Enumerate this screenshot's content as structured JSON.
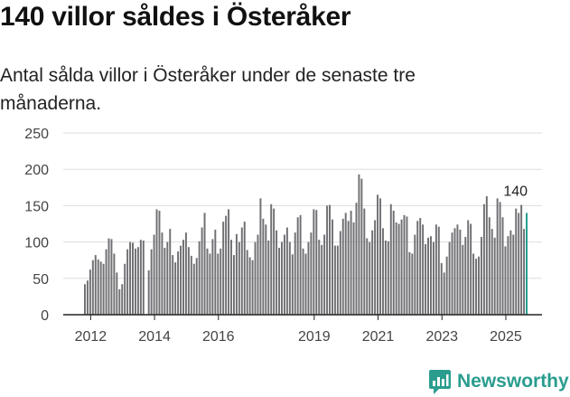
{
  "title": "140 villor såldes i Österåker",
  "subtitle": "Antal sålda villor i Österåker under de senaste tre månaderna.",
  "brand": {
    "name": "Newsworthy",
    "logo_icon": "bar-chart-speech-bubble-icon",
    "color": "#2a9d8f"
  },
  "colors": {
    "bar": "#706f73",
    "highlight": "#1f9e8f",
    "grid": "#dddddd",
    "axis": "#222222"
  },
  "chart_data": {
    "type": "bar",
    "title": "140 villor såldes i Österåker",
    "xlabel": "",
    "ylabel": "",
    "ylim": [
      0,
      250
    ],
    "yticks": [
      0,
      50,
      100,
      150,
      200,
      250
    ],
    "grid": true,
    "xticks": [
      {
        "label": "2012",
        "index": 2
      },
      {
        "label": "2014",
        "index": 26
      },
      {
        "label": "2016",
        "index": 50
      },
      {
        "label": "2019",
        "index": 86
      },
      {
        "label": "2021",
        "index": 110
      },
      {
        "label": "2023",
        "index": 134
      },
      {
        "label": "2025",
        "index": 158
      }
    ],
    "annotation": {
      "label": "140",
      "index": 162
    },
    "values": [
      42,
      47,
      62,
      75,
      82,
      76,
      73,
      70,
      90,
      105,
      104,
      84,
      58,
      35,
      42,
      70,
      90,
      100,
      99,
      91,
      93,
      103,
      102,
      0,
      61,
      90,
      110,
      145,
      143,
      113,
      92,
      100,
      118,
      82,
      72,
      87,
      95,
      103,
      113,
      93,
      81,
      70,
      78,
      101,
      120,
      140,
      91,
      84,
      104,
      117,
      84,
      91,
      128,
      136,
      145,
      103,
      82,
      111,
      100,
      120,
      128,
      89,
      79,
      75,
      100,
      110,
      160,
      132,
      124,
      102,
      152,
      146,
      116,
      92,
      100,
      110,
      120,
      100,
      83,
      113,
      134,
      137,
      91,
      84,
      100,
      113,
      145,
      144,
      103,
      96,
      110,
      150,
      151,
      131,
      95,
      95,
      115,
      132,
      140,
      129,
      143,
      127,
      154,
      193,
      187,
      146,
      105,
      100,
      116,
      130,
      165,
      160,
      119,
      102,
      101,
      152,
      143,
      127,
      125,
      131,
      137,
      135,
      86,
      84,
      110,
      129,
      133,
      124,
      97,
      106,
      108,
      100,
      124,
      121,
      71,
      58,
      80,
      100,
      113,
      119,
      124,
      117,
      96,
      107,
      130,
      125,
      84,
      77,
      80,
      107,
      152,
      163,
      134,
      118,
      106,
      160,
      155,
      134,
      94,
      108,
      116,
      110,
      146,
      140,
      151,
      118,
      140
    ]
  }
}
